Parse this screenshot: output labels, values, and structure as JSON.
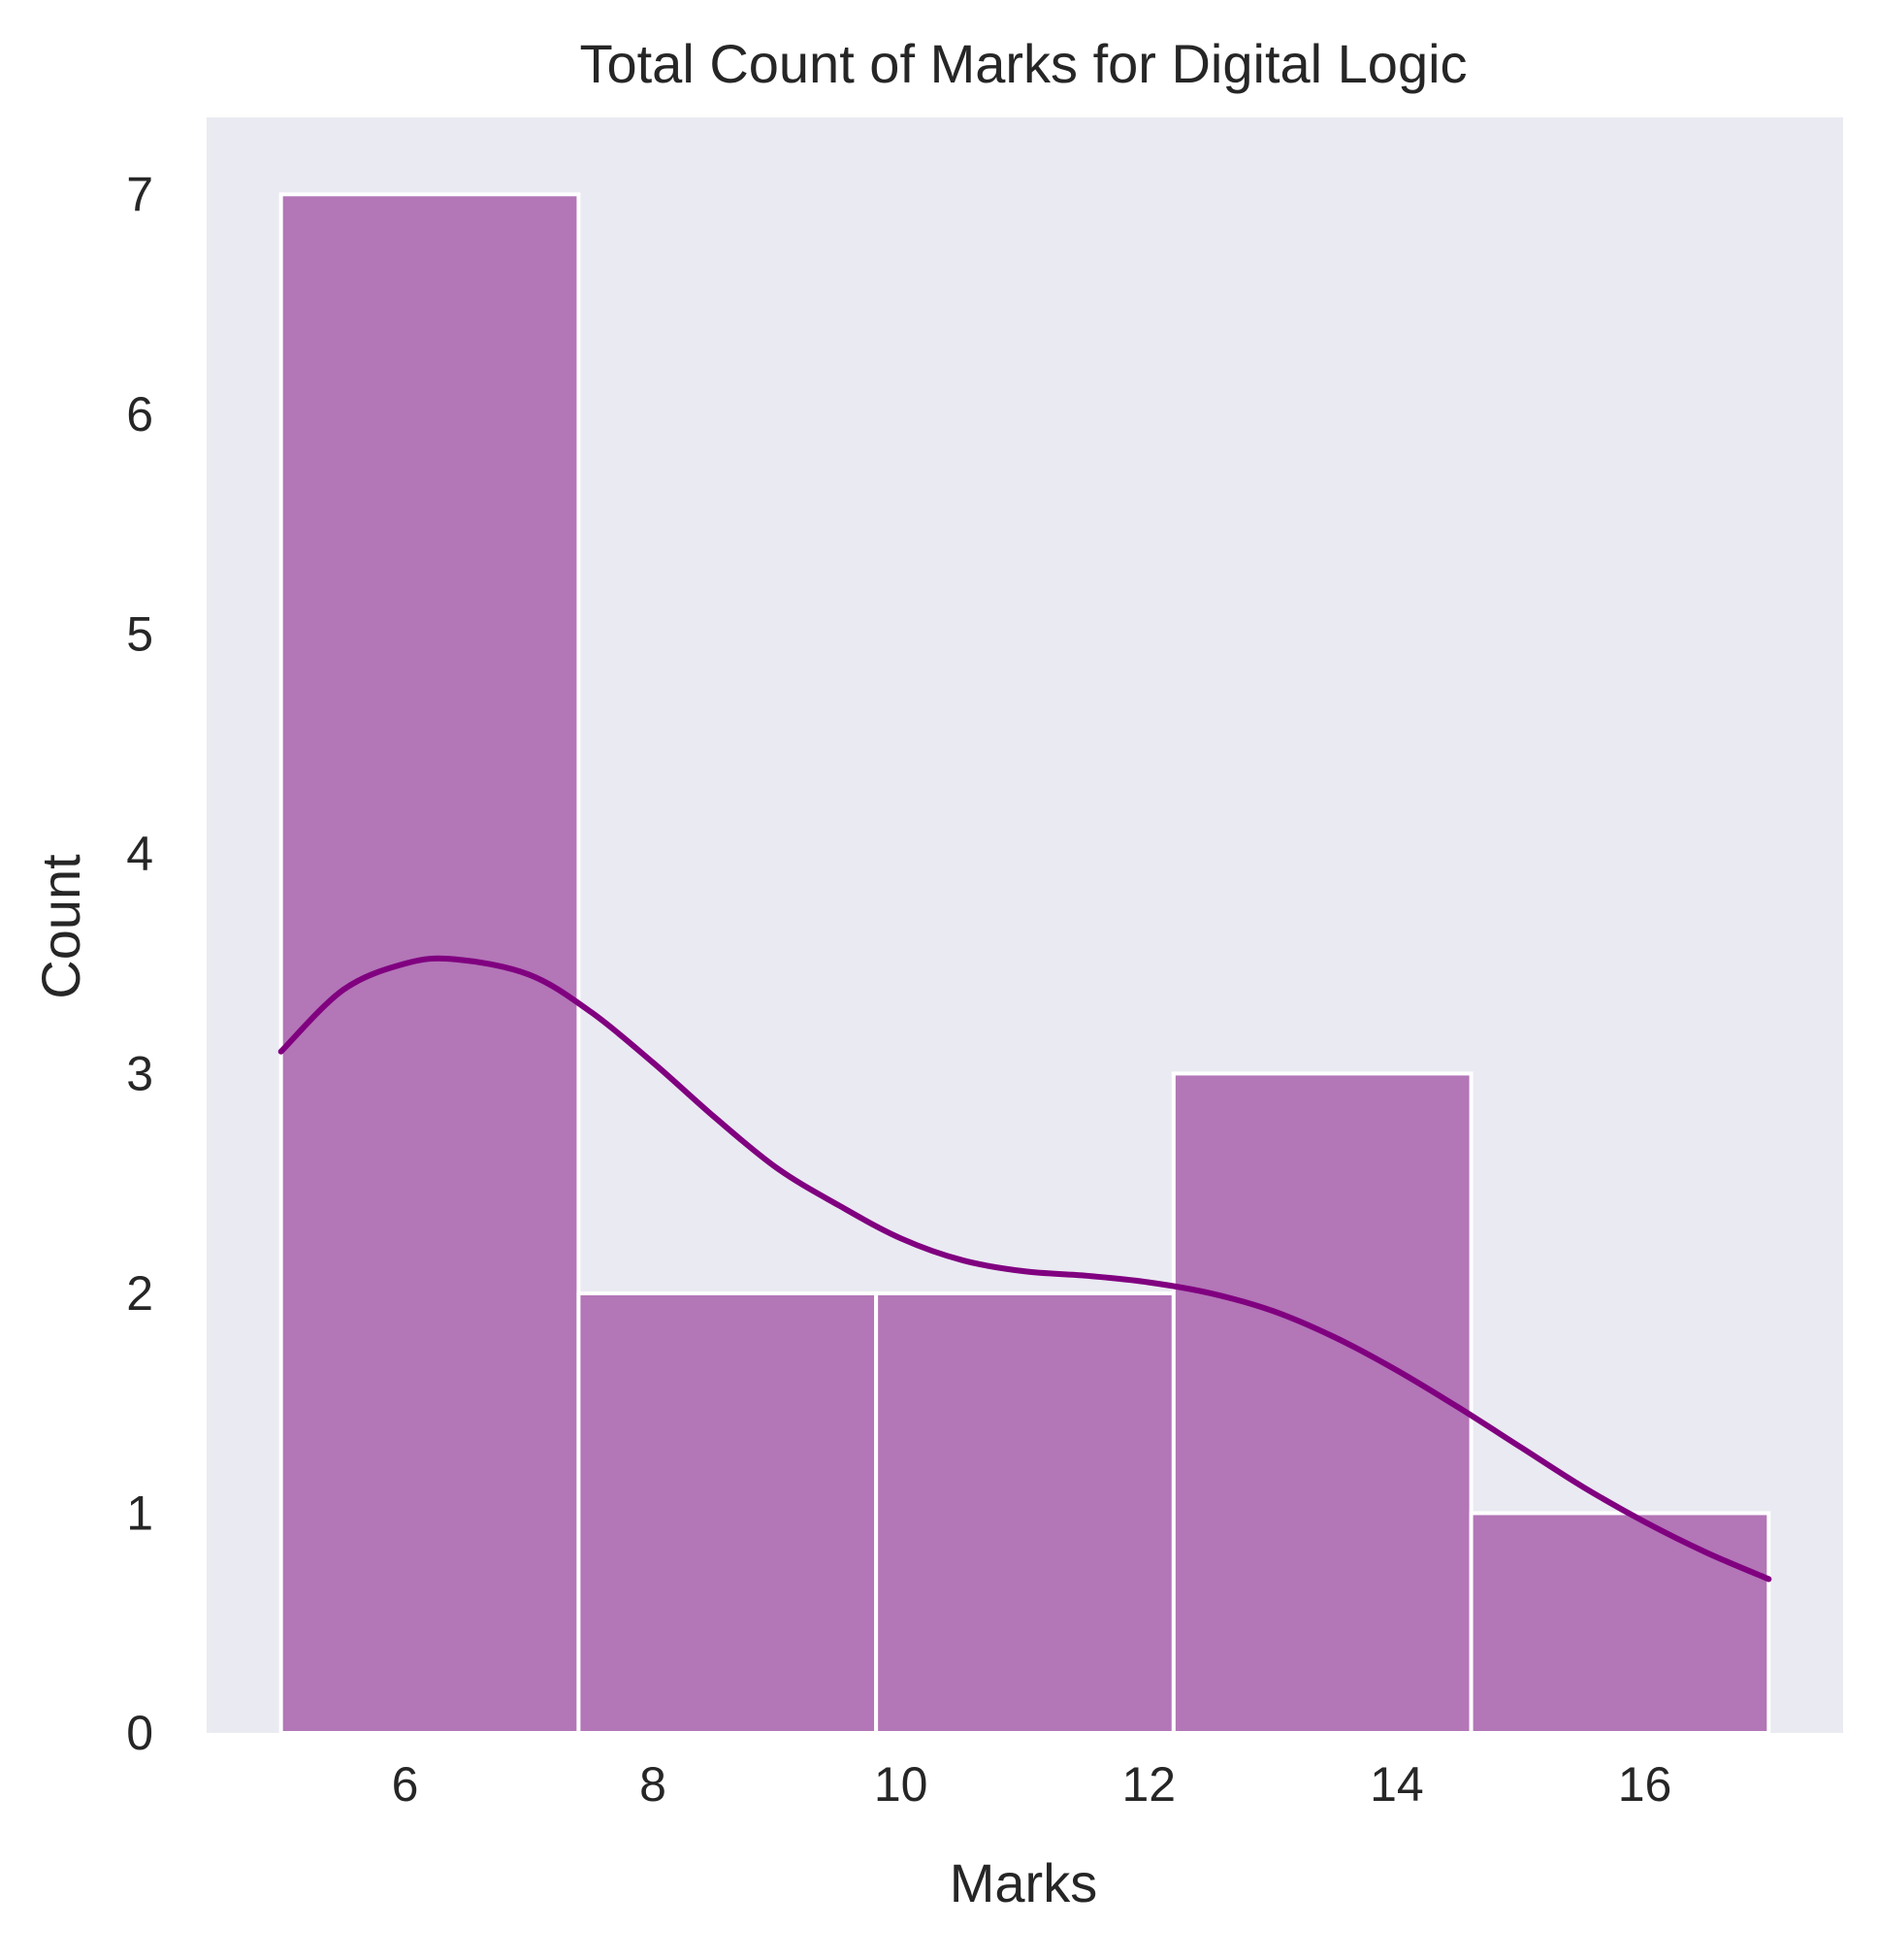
{
  "chart_data": {
    "type": "bar",
    "subtype": "histogram_with_kde",
    "title": "Total Count of Marks for Digital Logic",
    "xlabel": "Marks",
    "ylabel": "Count",
    "xlim": [
      4.4,
      17.6
    ],
    "ylim": [
      0,
      7.35
    ],
    "xticks": [
      6,
      8,
      10,
      12,
      14,
      16
    ],
    "yticks": [
      0,
      1,
      2,
      3,
      4,
      5,
      6,
      7
    ],
    "bins": [
      {
        "start": 5.0,
        "end": 7.4,
        "count": 7
      },
      {
        "start": 7.4,
        "end": 9.8,
        "count": 2
      },
      {
        "start": 9.8,
        "end": 12.2,
        "count": 2
      },
      {
        "start": 12.2,
        "end": 14.6,
        "count": 3
      },
      {
        "start": 14.6,
        "end": 17.0,
        "count": 1
      }
    ],
    "kde": {
      "x": [
        5.0,
        5.5,
        6.0,
        6.4,
        7.0,
        7.5,
        8.0,
        8.5,
        9.0,
        9.5,
        10.0,
        10.5,
        11.0,
        11.5,
        12.0,
        12.5,
        13.0,
        13.5,
        14.0,
        14.5,
        15.0,
        15.5,
        16.0,
        16.5,
        17.0
      ],
      "y": [
        3.1,
        3.38,
        3.5,
        3.52,
        3.45,
        3.28,
        3.05,
        2.8,
        2.57,
        2.4,
        2.25,
        2.15,
        2.1,
        2.08,
        2.05,
        2.0,
        1.92,
        1.8,
        1.65,
        1.48,
        1.3,
        1.12,
        0.96,
        0.82,
        0.7
      ]
    },
    "grid": false,
    "legend": "none",
    "colors": {
      "bar_fill": "#b376b7",
      "bar_edge": "#ffffff",
      "kde_line": "#800080",
      "plot_background": "#eaeaf2",
      "text": "#262626"
    }
  }
}
